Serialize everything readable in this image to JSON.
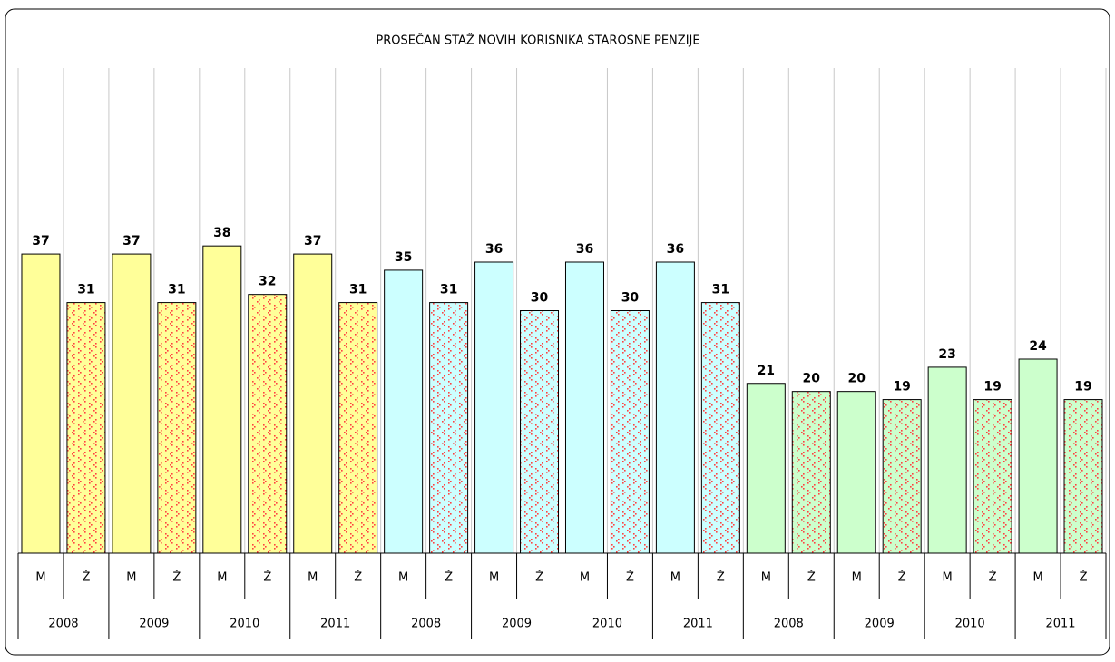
{
  "chart_data": {
    "type": "bar",
    "title": "PROSEČAN STAŽ NOVIH KORISNIKA STAROSNE PENZIJE",
    "categories": [
      "M",
      "Ž",
      "M",
      "Ž",
      "M",
      "Ž",
      "M",
      "Ž",
      "M",
      "Ž",
      "M",
      "Ž",
      "M",
      "Ž",
      "M",
      "Ž",
      "M",
      "Ž",
      "M",
      "Ž",
      "M",
      "Ž",
      "M",
      "Ž"
    ],
    "category_groups": [
      "2008",
      "2009",
      "2010",
      "2011",
      "2008",
      "2009",
      "2010",
      "2011",
      "2008",
      "2009",
      "2010",
      "2011"
    ],
    "values": [
      37,
      31,
      37,
      31,
      38,
      32,
      37,
      31,
      35,
      31,
      36,
      30,
      36,
      30,
      36,
      31,
      21,
      20,
      20,
      19,
      23,
      19,
      24,
      19
    ],
    "colors": [
      "#ffff99",
      "#ffff99",
      "#ffff99",
      "#ffff99",
      "#ffff99",
      "#ffff99",
      "#ffff99",
      "#ffff99",
      "#ccffff",
      "#ccffff",
      "#ccffff",
      "#ccffff",
      "#ccffff",
      "#ccffff",
      "#ccffff",
      "#ccffff",
      "#ccffcc",
      "#ccffcc",
      "#ccffcc",
      "#ccffcc",
      "#ccffcc",
      "#ccffcc",
      "#ccffcc",
      "#ccffcc"
    ],
    "pattern_color": "#ff4040",
    "ylim": [
      0,
      60
    ],
    "grid": true
  }
}
